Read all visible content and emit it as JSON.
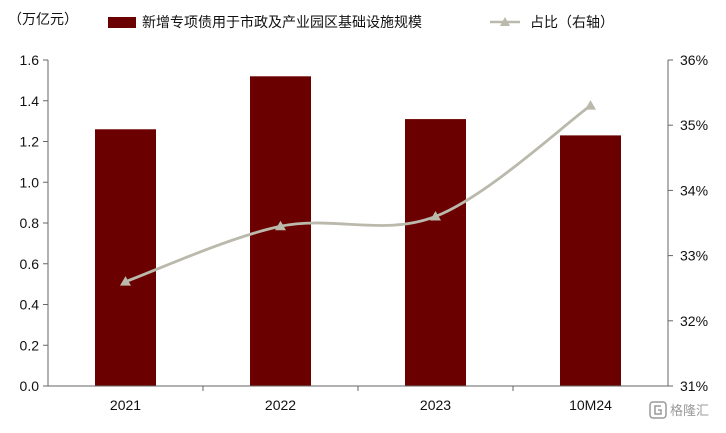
{
  "chart_data": {
    "type": "bar+line",
    "y_left_unit": "（万亿元）",
    "categories": [
      "2021",
      "2022",
      "2023",
      "10M24"
    ],
    "series": [
      {
        "name": "新增专项债用于市政及产业园区基础设施规模",
        "type": "bar",
        "axis": "left",
        "color": "#6b0000",
        "values": [
          1.26,
          1.52,
          1.31,
          1.23
        ]
      },
      {
        "name": "占比（右轴）",
        "type": "line",
        "axis": "right",
        "color": "#bab9ab",
        "values": [
          32.6,
          33.45,
          33.6,
          35.3
        ]
      }
    ],
    "y_left": {
      "range": [
        0,
        1.6
      ],
      "ticks": [
        "0.0",
        "0.2",
        "0.4",
        "0.6",
        "0.8",
        "1.0",
        "1.2",
        "1.4",
        "1.6"
      ]
    },
    "y_right": {
      "range": [
        31,
        36
      ],
      "ticks": [
        "31%",
        "32%",
        "33%",
        "34%",
        "35%",
        "36%"
      ]
    },
    "legend_position": "top",
    "grid": false
  },
  "watermark": {
    "icon": "gelonghui-logo-icon",
    "text": "格隆汇"
  }
}
